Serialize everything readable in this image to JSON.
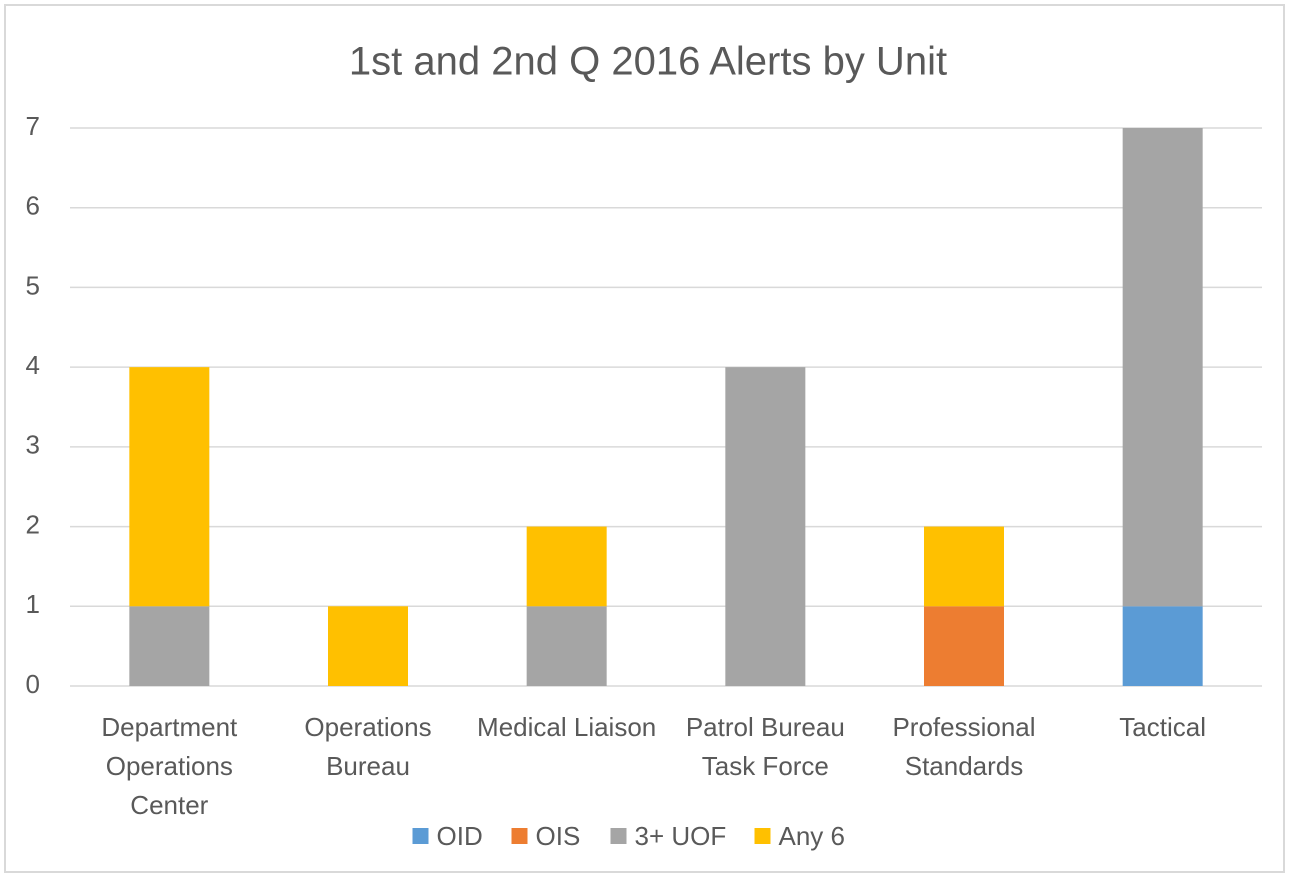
{
  "chart_data": {
    "type": "stacked_bar",
    "title": "1st and 2nd Q 2016 Alerts by Unit",
    "categories": [
      "Department Operations Center",
      "Operations Bureau",
      "Medical Liaison",
      "Patrol Bureau Task Force",
      "Professional Standards",
      "Tactical"
    ],
    "series": [
      {
        "name": "OID",
        "color": "#5b9bd5",
        "values": [
          0,
          0,
          0,
          0,
          0,
          1
        ]
      },
      {
        "name": "OIS",
        "color": "#ed7d31",
        "values": [
          0,
          0,
          0,
          0,
          1,
          0
        ]
      },
      {
        "name": "3+ UOF",
        "color": "#a5a5a5",
        "values": [
          1,
          0,
          1,
          4,
          0,
          6
        ]
      },
      {
        "name": "Any 6",
        "color": "#ffc000",
        "values": [
          3,
          1,
          1,
          0,
          1,
          0
        ]
      }
    ],
    "ylim": [
      0,
      7
    ],
    "yticks": [
      0,
      1,
      2,
      3,
      4,
      5,
      6,
      7
    ],
    "grid": true,
    "legend": "bottom"
  }
}
